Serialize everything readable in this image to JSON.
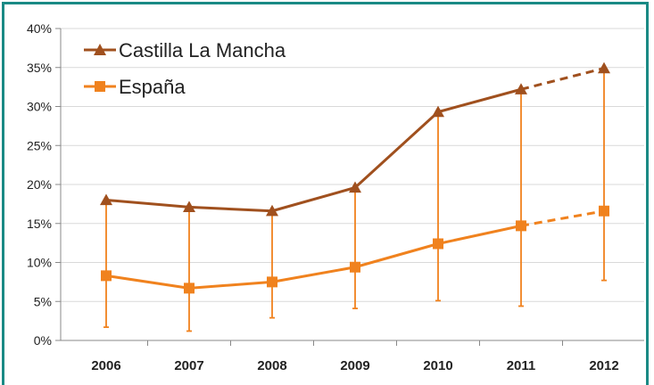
{
  "chart_data": {
    "type": "line",
    "title": "",
    "xlabel": "",
    "ylabel": "",
    "categories": [
      "2006",
      "2007",
      "2008",
      "2009",
      "2010",
      "2011",
      "2012"
    ],
    "y_ticks": [
      "0%",
      "5%",
      "10%",
      "15%",
      "20%",
      "25%",
      "30%",
      "35%",
      "40%"
    ],
    "ylim": [
      0,
      40
    ],
    "y_unit": "%",
    "grid": true,
    "legend_position": "top-left",
    "series": [
      {
        "name": "Castilla La Mancha",
        "values": [
          18.0,
          17.1,
          16.6,
          19.6,
          29.3,
          32.2,
          34.9
        ],
        "color": "#a0501e",
        "marker": "triangle",
        "dashed_last_segment": true
      },
      {
        "name": "España",
        "values": [
          8.3,
          6.7,
          7.5,
          9.4,
          12.4,
          14.7,
          16.6
        ],
        "color": "#f0821e",
        "marker": "square",
        "dashed_last_segment": true
      }
    ],
    "error_bars": {
      "color": "#f0821e",
      "low": [
        1.7,
        1.2,
        2.9,
        4.1,
        5.1,
        4.4,
        7.7
      ],
      "high": [
        18.0,
        17.1,
        16.6,
        19.6,
        29.3,
        32.2,
        34.9
      ]
    }
  }
}
